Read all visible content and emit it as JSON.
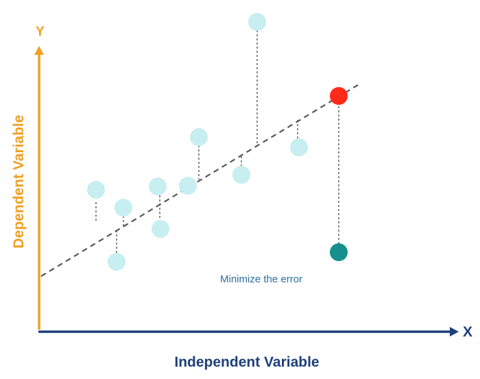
{
  "axes": {
    "y_letter": "Y",
    "x_letter": "X",
    "y_label": "Dependent Variable",
    "x_label": "Independent Variable"
  },
  "annotation": "Minimize the error",
  "colors": {
    "y_axis": "#f0a020",
    "x_axis": "#1e3f7a",
    "point": "#c7eef0",
    "highlight_point": "#ff2a1a",
    "target_point": "#168f8d",
    "fit_line": "#555555",
    "residual": "#555555",
    "annotation": "#2a6fa0"
  }
}
